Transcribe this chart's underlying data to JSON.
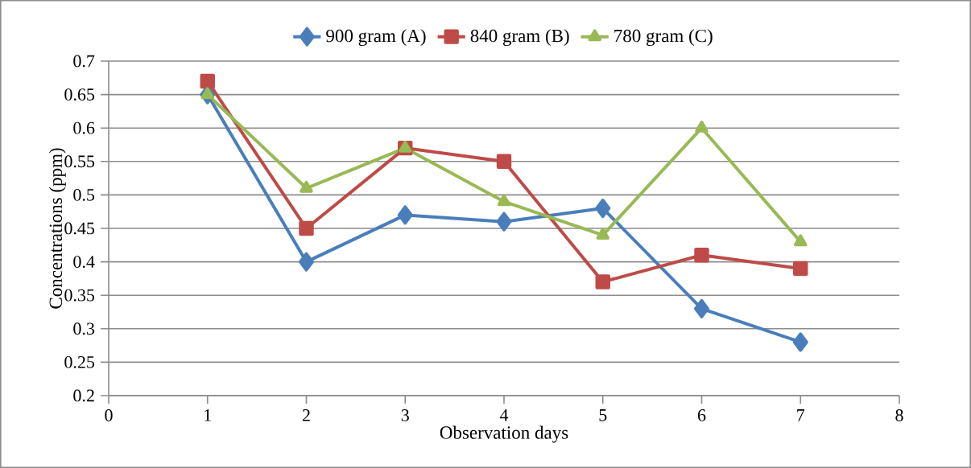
{
  "chart_data": {
    "type": "line",
    "xlabel": "Observation days",
    "ylabel": "Concentrations (ppm)",
    "x": [
      1,
      2,
      3,
      4,
      5,
      6,
      7
    ],
    "series": [
      {
        "name": "900 gram (A)",
        "color": "#4a7ebb",
        "marker": "diamond",
        "values": [
          0.65,
          0.4,
          0.47,
          0.46,
          0.48,
          0.33,
          0.28
        ]
      },
      {
        "name": "840 gram (B)",
        "color": "#be4b48",
        "marker": "square",
        "values": [
          0.67,
          0.45,
          0.57,
          0.55,
          0.37,
          0.41,
          0.39
        ]
      },
      {
        "name": "780 gram (C)",
        "color": "#98b954",
        "marker": "triangle",
        "values": [
          0.65,
          0.51,
          0.57,
          0.49,
          0.44,
          0.6,
          0.43
        ]
      }
    ],
    "xlim": [
      0,
      8
    ],
    "xticks": [
      0,
      1,
      2,
      3,
      4,
      5,
      6,
      7,
      8
    ],
    "ylim": [
      0.2,
      0.7
    ],
    "yticks": [
      0.2,
      0.25,
      0.3,
      0.35,
      0.4,
      0.45,
      0.5,
      0.55,
      0.6,
      0.65,
      0.7
    ],
    "grid": "y",
    "legend": "top",
    "line_style": "solid"
  }
}
